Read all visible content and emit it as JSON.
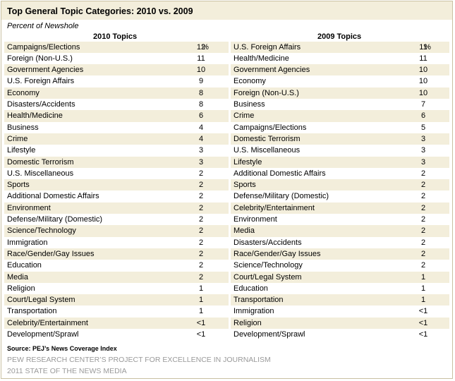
{
  "chart_data": {
    "type": "table",
    "title": "Top General Topic  Categories: 2010 vs. 2009",
    "subtitle": "Percent of Newshole",
    "unit_mark": "%",
    "tables": [
      {
        "header": "2010 Topics",
        "rows": [
          {
            "topic": "Campaigns/Elections",
            "value": "12"
          },
          {
            "topic": "Foreign (Non-U.S.)",
            "value": "11"
          },
          {
            "topic": "Government Agencies",
            "value": "10"
          },
          {
            "topic": "U.S. Foreign Affairs",
            "value": "9"
          },
          {
            "topic": "Economy",
            "value": "8"
          },
          {
            "topic": "Disasters/Accidents",
            "value": "8"
          },
          {
            "topic": "Health/Medicine",
            "value": "6"
          },
          {
            "topic": "Business",
            "value": "4"
          },
          {
            "topic": "Crime",
            "value": "4"
          },
          {
            "topic": "Lifestyle",
            "value": "3"
          },
          {
            "topic": "Domestic Terrorism",
            "value": "3"
          },
          {
            "topic": "U.S. Miscellaneous",
            "value": "2"
          },
          {
            "topic": "Sports",
            "value": "2"
          },
          {
            "topic": "Additional Domestic Affairs",
            "value": "2"
          },
          {
            "topic": "Environment",
            "value": "2"
          },
          {
            "topic": "Defense/Military (Domestic)",
            "value": "2"
          },
          {
            "topic": "Science/Technology",
            "value": "2"
          },
          {
            "topic": "Immigration",
            "value": "2"
          },
          {
            "topic": "Race/Gender/Gay Issues",
            "value": "2"
          },
          {
            "topic": "Education",
            "value": "2"
          },
          {
            "topic": "Media",
            "value": "2"
          },
          {
            "topic": "Religion",
            "value": "1"
          },
          {
            "topic": "Court/Legal System",
            "value": "1"
          },
          {
            "topic": "Transportation",
            "value": "1"
          },
          {
            "topic": "Celebrity/Entertainment",
            "value": "<1"
          },
          {
            "topic": "Development/Sprawl",
            "value": "<1"
          }
        ]
      },
      {
        "header": "2009 Topics",
        "rows": [
          {
            "topic": "U.S. Foreign Affairs",
            "value": "11"
          },
          {
            "topic": "Health/Medicine",
            "value": "11"
          },
          {
            "topic": "Government Agencies",
            "value": "10"
          },
          {
            "topic": "Economy",
            "value": "10"
          },
          {
            "topic": "Foreign (Non-U.S.)",
            "value": "10"
          },
          {
            "topic": "Business",
            "value": "7"
          },
          {
            "topic": "Crime",
            "value": "6"
          },
          {
            "topic": "Campaigns/Elections",
            "value": "5"
          },
          {
            "topic": "Domestic Terrorism",
            "value": "3"
          },
          {
            "topic": "U.S. Miscellaneous",
            "value": "3"
          },
          {
            "topic": "Lifestyle",
            "value": "3"
          },
          {
            "topic": "Additional Domestic Affairs",
            "value": "2"
          },
          {
            "topic": "Sports",
            "value": "2"
          },
          {
            "topic": "Defense/Military (Domestic)",
            "value": "2"
          },
          {
            "topic": "Celebrity/Entertainment",
            "value": "2"
          },
          {
            "topic": "Environment",
            "value": "2"
          },
          {
            "topic": "Media",
            "value": "2"
          },
          {
            "topic": "Disasters/Accidents",
            "value": "2"
          },
          {
            "topic": "Race/Gender/Gay Issues",
            "value": "2"
          },
          {
            "topic": "Science/Technology",
            "value": "2"
          },
          {
            "topic": "Court/Legal System",
            "value": "1"
          },
          {
            "topic": "Education",
            "value": "1"
          },
          {
            "topic": "Transportation",
            "value": "1"
          },
          {
            "topic": "Immigration",
            "value": "<1"
          },
          {
            "topic": "Religion",
            "value": "<1"
          },
          {
            "topic": "Development/Sprawl",
            "value": "<1"
          }
        ]
      }
    ]
  },
  "footer": {
    "source": "Source: PEJ’s News Coverage Index",
    "organization": "PEW RESEARCH CENTER’S PROJECT FOR EXCELLENCE IN JOURNALISM",
    "report": "2011 STATE OF THE NEWS MEDIA"
  },
  "colors": {
    "shading": "#f3eedb",
    "border": "#c9c1a3",
    "footer_gray": "#9a9a9a"
  }
}
